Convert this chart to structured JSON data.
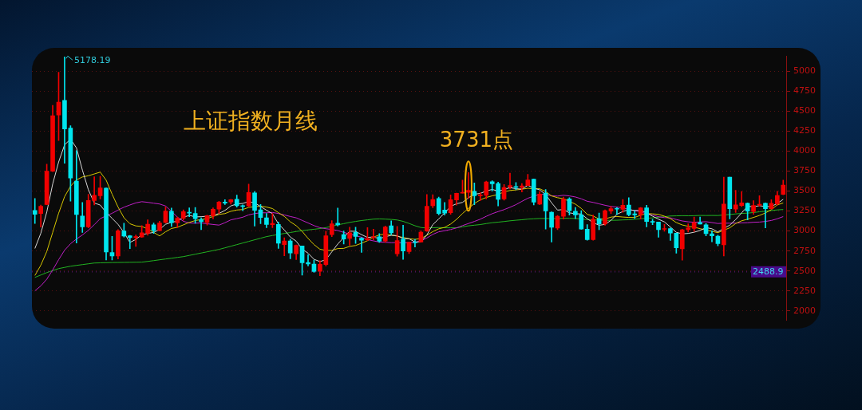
{
  "chart_data": {
    "type": "candlestick",
    "title": "上证指数月线",
    "categories": [
      null,
      null,
      null,
      null,
      null,
      null,
      null,
      null,
      null,
      null,
      null,
      null,
      null,
      null,
      null,
      null,
      null,
      null,
      null,
      null,
      null,
      null,
      null,
      null,
      null,
      null,
      null,
      null,
      null,
      null,
      null,
      null,
      null,
      null,
      null,
      null,
      null,
      null,
      null,
      null,
      null,
      null,
      null,
      null,
      null,
      null,
      null,
      null,
      null,
      null,
      null,
      null,
      null,
      null,
      null,
      null,
      null,
      null,
      null,
      null,
      null,
      null,
      null,
      null,
      null,
      null,
      null,
      null,
      null,
      null,
      null,
      null,
      null,
      null,
      null,
      null,
      null,
      null,
      null,
      null,
      null,
      null,
      null,
      null,
      null,
      null,
      null,
      null,
      null,
      null,
      null,
      null,
      null,
      null,
      null,
      null,
      null,
      null,
      null,
      null,
      null,
      null,
      null,
      null,
      null,
      null,
      null,
      null,
      null,
      null,
      null,
      null,
      null,
      null,
      null,
      null,
      null,
      null,
      null,
      null,
      null,
      null,
      null,
      null,
      null,
      null,
      null
    ],
    "ohlc": [
      [
        3258,
        3406,
        3095,
        3210
      ],
      [
        3219,
        3325,
        3050,
        3310
      ],
      [
        3332,
        3835,
        3330,
        3748
      ],
      [
        3748,
        4572,
        3742,
        4442
      ],
      [
        4452,
        4986,
        4131,
        4612
      ],
      [
        4633,
        5178.19,
        3847,
        4277
      ],
      [
        4287,
        4318,
        3373,
        3664
      ],
      [
        3623,
        4006,
        2851,
        3206
      ],
      [
        3188,
        3357,
        2983,
        3053
      ],
      [
        3052,
        3459,
        3039,
        3383
      ],
      [
        3380,
        3678,
        3327,
        3446
      ],
      [
        3441,
        3684,
        3400,
        3539
      ],
      [
        3536,
        3539,
        2638,
        2738
      ],
      [
        2730,
        2933,
        2638,
        2688
      ],
      [
        2688,
        3018,
        2650,
        3004
      ],
      [
        3001,
        3097,
        2925,
        2938
      ],
      [
        2940,
        2946,
        2781,
        2917
      ],
      [
        2917,
        2951,
        2807,
        2930
      ],
      [
        2924,
        3069,
        2920,
        2979
      ],
      [
        2972,
        3140,
        2947,
        3085
      ],
      [
        3077,
        3101,
        2969,
        3005
      ],
      [
        3005,
        3123,
        3003,
        3100
      ],
      [
        3108,
        3301,
        3102,
        3250
      ],
      [
        3247,
        3288,
        3056,
        3104
      ],
      [
        3101,
        3174,
        3044,
        3159
      ],
      [
        3160,
        3265,
        3134,
        3242
      ],
      [
        3236,
        3289,
        3180,
        3223
      ],
      [
        3220,
        3296,
        3096,
        3155
      ],
      [
        3143,
        3165,
        3017,
        3117
      ],
      [
        3106,
        3198,
        3074,
        3192
      ],
      [
        3189,
        3290,
        3151,
        3273
      ],
      [
        3273,
        3373,
        3219,
        3361
      ],
      [
        3363,
        3392,
        3331,
        3349
      ],
      [
        3363,
        3397,
        3337,
        3393
      ],
      [
        3396,
        3450,
        3300,
        3317
      ],
      [
        3312,
        3326,
        3254,
        3307
      ],
      [
        3314,
        3587,
        3305,
        3481
      ],
      [
        3478,
        3495,
        3062,
        3259
      ],
      [
        3264,
        3333,
        3091,
        3169
      ],
      [
        3166,
        3220,
        3041,
        3082
      ],
      [
        3080,
        3219,
        3041,
        3095
      ],
      [
        3084,
        3113,
        2782,
        2847
      ],
      [
        2830,
        2915,
        2691,
        2876
      ],
      [
        2875,
        2896,
        2653,
        2725
      ],
      [
        2715,
        2827,
        2644,
        2821
      ],
      [
        2813,
        2813,
        2449,
        2603
      ],
      [
        2606,
        2703,
        2563,
        2588
      ],
      [
        2586,
        2637,
        2483,
        2494
      ],
      [
        2497,
        2630,
        2440,
        2585
      ],
      [
        2580,
        2997,
        2562,
        2941
      ],
      [
        2954,
        3129,
        2930,
        3091
      ],
      [
        3098,
        3288,
        3062,
        3078
      ],
      [
        2955,
        3000,
        2838,
        2899
      ],
      [
        2908,
        3048,
        2823,
        2979
      ],
      [
        2982,
        3049,
        2844,
        2933
      ],
      [
        2910,
        2918,
        2733,
        2886
      ],
      [
        2890,
        3042,
        2880,
        2905
      ],
      [
        2918,
        3022,
        2891,
        2929
      ],
      [
        2927,
        2967,
        2857,
        2872
      ],
      [
        2874,
        3062,
        2857,
        3050
      ],
      [
        3066,
        3127,
        2952,
        2977
      ],
      [
        2716,
        3058,
        2685,
        2880
      ],
      [
        2899,
        3074,
        2646,
        2750
      ],
      [
        2743,
        2860,
        2717,
        2860
      ],
      [
        2854,
        2897,
        2800,
        2852
      ],
      [
        2862,
        3003,
        2859,
        2985
      ],
      [
        2999,
        3458,
        2994,
        3310
      ],
      [
        3317,
        3455,
        3291,
        3395
      ],
      [
        3406,
        3425,
        3202,
        3218
      ],
      [
        3262,
        3358,
        3200,
        3225
      ],
      [
        3230,
        3452,
        3209,
        3392
      ],
      [
        3388,
        3474,
        3325,
        3473
      ],
      [
        3474,
        3637,
        3474,
        3483
      ],
      [
        3484,
        3731,
        3405,
        3509
      ],
      [
        3498,
        3602,
        3328,
        3442
      ],
      [
        3442,
        3480,
        3381,
        3447
      ],
      [
        3445,
        3625,
        3400,
        3615
      ],
      [
        3616,
        3628,
        3500,
        3591
      ],
      [
        3593,
        3611,
        3313,
        3397
      ],
      [
        3400,
        3582,
        3385,
        3544
      ],
      [
        3551,
        3723,
        3527,
        3568
      ],
      [
        3555,
        3607,
        3515,
        3547
      ],
      [
        3547,
        3593,
        3489,
        3563
      ],
      [
        3568,
        3708,
        3565,
        3640
      ],
      [
        3649,
        3651,
        3326,
        3362
      ],
      [
        3337,
        3491,
        3329,
        3463
      ],
      [
        3474,
        3520,
        3024,
        3252
      ],
      [
        3236,
        3239,
        2863,
        3047
      ],
      [
        3036,
        3196,
        3017,
        3186
      ],
      [
        3184,
        3424,
        3148,
        3399
      ],
      [
        3402,
        3417,
        3200,
        3253
      ],
      [
        3247,
        3296,
        3155,
        3202
      ],
      [
        3202,
        3254,
        3022,
        3024
      ],
      [
        3024,
        3081,
        2885,
        2893
      ],
      [
        2893,
        3199,
        2886,
        3151
      ],
      [
        3155,
        3226,
        3017,
        3089
      ],
      [
        3087,
        3264,
        3073,
        3256
      ],
      [
        3248,
        3308,
        3218,
        3280
      ],
      [
        3283,
        3296,
        3206,
        3273
      ],
      [
        3271,
        3394,
        3234,
        3323
      ],
      [
        3325,
        3418,
        3188,
        3205
      ],
      [
        3215,
        3254,
        3156,
        3202
      ],
      [
        3202,
        3296,
        3149,
        3291
      ],
      [
        3291,
        3323,
        3053,
        3120
      ],
      [
        3118,
        3148,
        3079,
        3110
      ],
      [
        3112,
        3113,
        2923,
        3018
      ],
      [
        3021,
        3083,
        2997,
        3030
      ],
      [
        3031,
        3039,
        2882,
        2975
      ],
      [
        2972,
        2976,
        2724,
        2789
      ],
      [
        2778,
        3023,
        2635,
        3015
      ],
      [
        3016,
        3091,
        2988,
        3041
      ],
      [
        3033,
        3174,
        2995,
        3104
      ],
      [
        3107,
        3175,
        3086,
        3087
      ],
      [
        3079,
        3096,
        2940,
        2967
      ],
      [
        2966,
        3003,
        2865,
        2939
      ],
      [
        2935,
        2947,
        2815,
        2842
      ],
      [
        2827,
        3674,
        2689,
        3336
      ],
      [
        3674,
        3674,
        3152,
        3279
      ],
      [
        3275,
        3509,
        3232,
        3326
      ],
      [
        3320,
        3495,
        3306,
        3351
      ],
      [
        3347,
        3352,
        3140,
        3250
      ],
      [
        3244,
        3380,
        3208,
        3320
      ],
      [
        3323,
        3441,
        3310,
        3335
      ],
      [
        3347,
        3352,
        3040,
        3279
      ],
      [
        3279,
        3392,
        3275,
        3347
      ],
      [
        3340,
        3497,
        3323,
        3444
      ],
      [
        3459,
        3636,
        3454,
        3573
      ]
    ],
    "colors": [
      "#00e5ee",
      "#f20000",
      "#f20000",
      "#f20000",
      "#f20000",
      "#00e5ee",
      "#00e5ee",
      "#00e5ee",
      "#00e5ee",
      "#f20000",
      "#f20000",
      "#f20000",
      "#00e5ee",
      "#00e5ee",
      "#f20000",
      "#00e5ee",
      "#00e5ee",
      "#f20000",
      "#f20000",
      "#f20000",
      "#00e5ee",
      "#f20000",
      "#f20000",
      "#00e5ee",
      "#f20000",
      "#f20000",
      "#00e5ee",
      "#00e5ee",
      "#00e5ee",
      "#f20000",
      "#f20000",
      "#f20000",
      "#00e5ee",
      "#f20000",
      "#00e5ee",
      "#00e5ee",
      "#f20000",
      "#00e5ee",
      "#00e5ee",
      "#00e5ee",
      "#f20000",
      "#00e5ee",
      "#f20000",
      "#00e5ee",
      "#f20000",
      "#00e5ee",
      "#00e5ee",
      "#00e5ee",
      "#f20000",
      "#f20000",
      "#f20000",
      "#00e5ee",
      "#00e5ee",
      "#f20000",
      "#00e5ee",
      "#00e5ee",
      "#f20000",
      "#f20000",
      "#00e5ee",
      "#f20000",
      "#00e5ee",
      "#f20000",
      "#00e5ee",
      "#f20000",
      "#00e5ee",
      "#f20000",
      "#f20000",
      "#f20000",
      "#00e5ee",
      "#00e5ee",
      "#f20000",
      "#f20000",
      "#f20000",
      "#f20000",
      "#00e5ee",
      "#f20000",
      "#f20000",
      "#00e5ee",
      "#00e5ee",
      "#f20000",
      "#f20000",
      "#00e5ee",
      "#f20000",
      "#f20000",
      "#00e5ee",
      "#f20000",
      "#00e5ee",
      "#00e5ee",
      "#f20000",
      "#f20000",
      "#00e5ee",
      "#00e5ee",
      "#00e5ee",
      "#00e5ee",
      "#f20000",
      "#00e5ee",
      "#f20000",
      "#f20000",
      "#00e5ee",
      "#f20000",
      "#00e5ee",
      "#00e5ee",
      "#f20000",
      "#00e5ee",
      "#00e5ee",
      "#00e5ee",
      "#f20000",
      "#00e5ee",
      "#00e5ee",
      "#f20000",
      "#f20000",
      "#f20000",
      "#00e5ee",
      "#00e5ee",
      "#00e5ee",
      "#00e5ee",
      "#f20000",
      "#00e5ee",
      "#f20000",
      "#f20000",
      "#00e5ee",
      "#f20000",
      "#f20000",
      "#00e5ee",
      "#f20000",
      "#f20000",
      "#f20000"
    ],
    "series": [
      {
        "type": "line",
        "color": "#d8d8d8",
        "values": [
          2782,
          2972,
          3237,
          3589,
          3864,
          4078,
          4149,
          4040,
          3762,
          3517,
          3350,
          3325,
          3232,
          3159,
          3083,
          2981,
          2857,
          2895,
          2954,
          2970,
          2983,
          3020,
          3084,
          3109,
          3124,
          3171,
          3196,
          3177,
          3179,
          3186,
          3192,
          3220,
          3258,
          3314,
          3339,
          3345,
          3369,
          3351,
          3307,
          3260,
          3217,
          3090,
          3014,
          2925,
          2873,
          2774,
          2723,
          2646,
          2618,
          2642,
          2740,
          2838,
          2919,
          2998,
          2996,
          2955,
          2920,
          2926,
          2905,
          2928,
          2947,
          2942,
          2906,
          2903,
          2864,
          2865,
          2951,
          3080,
          3152,
          3227,
          3308,
          3341,
          3358,
          3416,
          3460,
          3471,
          3499,
          3521,
          3498,
          3519,
          3543,
          3529,
          3524,
          3572,
          3536,
          3515,
          3456,
          3353,
          3262,
          3269,
          3227,
          3217,
          3213,
          3154,
          3105,
          3072,
          3083,
          3134,
          3210,
          3244,
          3267,
          3257,
          3259,
          3228,
          3186,
          3148,
          3114,
          3051,
          2984,
          2965,
          2970,
          2985,
          3007,
          3043,
          3028,
          2988,
          3034,
          3073,
          3144,
          3227,
          3308,
          3305,
          3316,
          3307,
          3306,
          3345,
          3396
        ]
      },
      {
        "type": "line",
        "color": "#d8c800",
        "values": [
          2444,
          2573,
          2744,
          2983,
          3224,
          3430,
          3561,
          3639,
          3676,
          3691,
          3714,
          3737,
          3636,
          3461,
          3300,
          3166,
          3091,
          3064,
          3057,
          3027,
          2982,
          2939,
          2990,
          3032,
          3047,
          3077,
          3108,
          3131,
          3144,
          3155,
          3182,
          3208,
          3218,
          3247,
          3263,
          3269,
          3295,
          3305,
          3311,
          3300,
          3281,
          3230,
          3183,
          3116,
          3067,
          2996,
          2907,
          2830,
          2772,
          2758,
          2757,
          2781,
          2783,
          2808,
          2819,
          2848,
          2879,
          2923,
          2952,
          2962,
          2951,
          null,
          null,
          2904,
          2896,
          2906,
          2947,
          2993,
          3028,
          3046,
          3087,
          3146,
          3219,
          3284,
          3344,
          3390,
          3420,
          3440,
          3457,
          3490,
          3507,
          3514,
          3523,
          3535,
          3528,
          3529,
          3493,
          3439,
          3417,
          3403,
          3371,
          3337,
          3283,
          3208,
          3187,
          3150,
          3150,
          3174,
          3182,
          3175,
          3170,
          3170,
          3197,
          3219,
          3215,
          3208,
          3186,
          3155,
          3106,
          3076,
          3059,
          3050,
          3029,
          3014,
          2997,
          2979,
          3010,
          3040,
          3094,
          3128,
          3148,
          3170,
          3195,
          3226,
          3267,
          3327,
          3351
        ]
      },
      {
        "type": "line",
        "color": "#c020c8",
        "values": [
          2252,
          2314,
          2397,
          2514,
          2642,
          2760,
          2841,
          2900,
          2951,
          3009,
          3079,
          3155,
          3190,
          3222,
          3262,
          3298,
          3326,
          3352,
          3367,
          3359,
          3348,
          3338,
          3313,
          3247,
          3174,
          3122,
          3100,
          3098,
          3101,
          3091,
          3082,
          3074,
          3104,
          3140,
          3155,
          3173,
          3202,
          3218,
          3228,
          3228,
          3232,
          3219,
          3201,
          3182,
          3165,
          3133,
          3101,
          3068,
          3042,
          3029,
          3019,
          3006,
          2983,
          2962,
          2943,
          2922,
          2893,
          2877,
          2862,
          2860,
          2854,
          2856,
          2850,
          2856,
          2858,
          2877,
          2913,
          2958,
          2990,
          3004,
          3019,
          3039,
          3068,
          3094,
          3120,
          3148,
          3184,
          3217,
          3243,
          3268,
          3297,
          3330,
          3371,
          3410,
          3436,
          3460,
          3457,
          3440,
          3437,
          3447,
          3439,
          3426,
          3403,
          3372,
          3358,
          3340,
          3322,
          3307,
          3300,
          3289,
          3271,
          3254,
          3240,
          3214,
          3201,
          3179,
          3168,
          3165,
          3144,
          3126,
          3115,
          3110,
          3113,
          3117,
          3106,
          3094,
          3098,
          3098,
          3100,
          3102,
          3104,
          3110,
          3112,
          3120,
          3132,
          3153,
          3181
        ]
      },
      {
        "type": "line",
        "color": "#22b422",
        "values": [
          2420,
          2450,
          2480,
          2505,
          2530,
          2545,
          2560,
          2570,
          2580,
          2590,
          2600,
          2602,
          2604,
          2606,
          2607,
          2608,
          2609,
          2610,
          2611,
          2620,
          2630,
          2640,
          2650,
          2660,
          2670,
          2680,
          2695,
          2710,
          2725,
          2740,
          2755,
          2770,
          2790,
          2810,
          2830,
          2850,
          2870,
          2890,
          2910,
          2930,
          2944,
          2957,
          2970,
          2981,
          2994,
          3005,
          3014,
          3022,
          3031,
          3043,
          3060,
          3078,
          3092,
          3108,
          3120,
          3131,
          3140,
          3149,
          3152,
          3149,
          3145,
          3138,
          3121,
          3095,
          3066,
          3044,
          3038,
          3041,
          3044,
          3041,
          3040,
          3040,
          3052,
          3065,
          3073,
          3081,
          3093,
          3104,
          3111,
          3119,
          3128,
          3135,
          3141,
          3149,
          3153,
          3157,
          3157,
          3155,
          3156,
          3160,
          3159,
          3157,
          3151,
          3143,
          3140,
          3137,
          3133,
          3134,
          3135,
          3139,
          3141,
          3147,
          3154,
          3160,
          3165,
          3172,
          3179,
          3188,
          3190,
          3192,
          3191,
          3192,
          3195,
          3194,
          3195,
          3194,
          3201,
          3207,
          3214,
          3220,
          3224,
          3231,
          3241,
          3248,
          3256,
          3264,
          3269
        ]
      }
    ],
    "ylim": [
      1885,
      5185
    ],
    "yticks": [
      2000,
      2250,
      2500,
      2750,
      3000,
      3250,
      3500,
      3750,
      4000,
      4250,
      4500,
      4750,
      5000
    ],
    "grid": "y",
    "legend": false,
    "marker": "none",
    "tick_labels": "y",
    "ref_lines": [
      {
        "axis": "y",
        "value": 2488.9,
        "label": "2488.9"
      }
    ],
    "annotations": [
      "5178.19",
      "3731点"
    ]
  }
}
